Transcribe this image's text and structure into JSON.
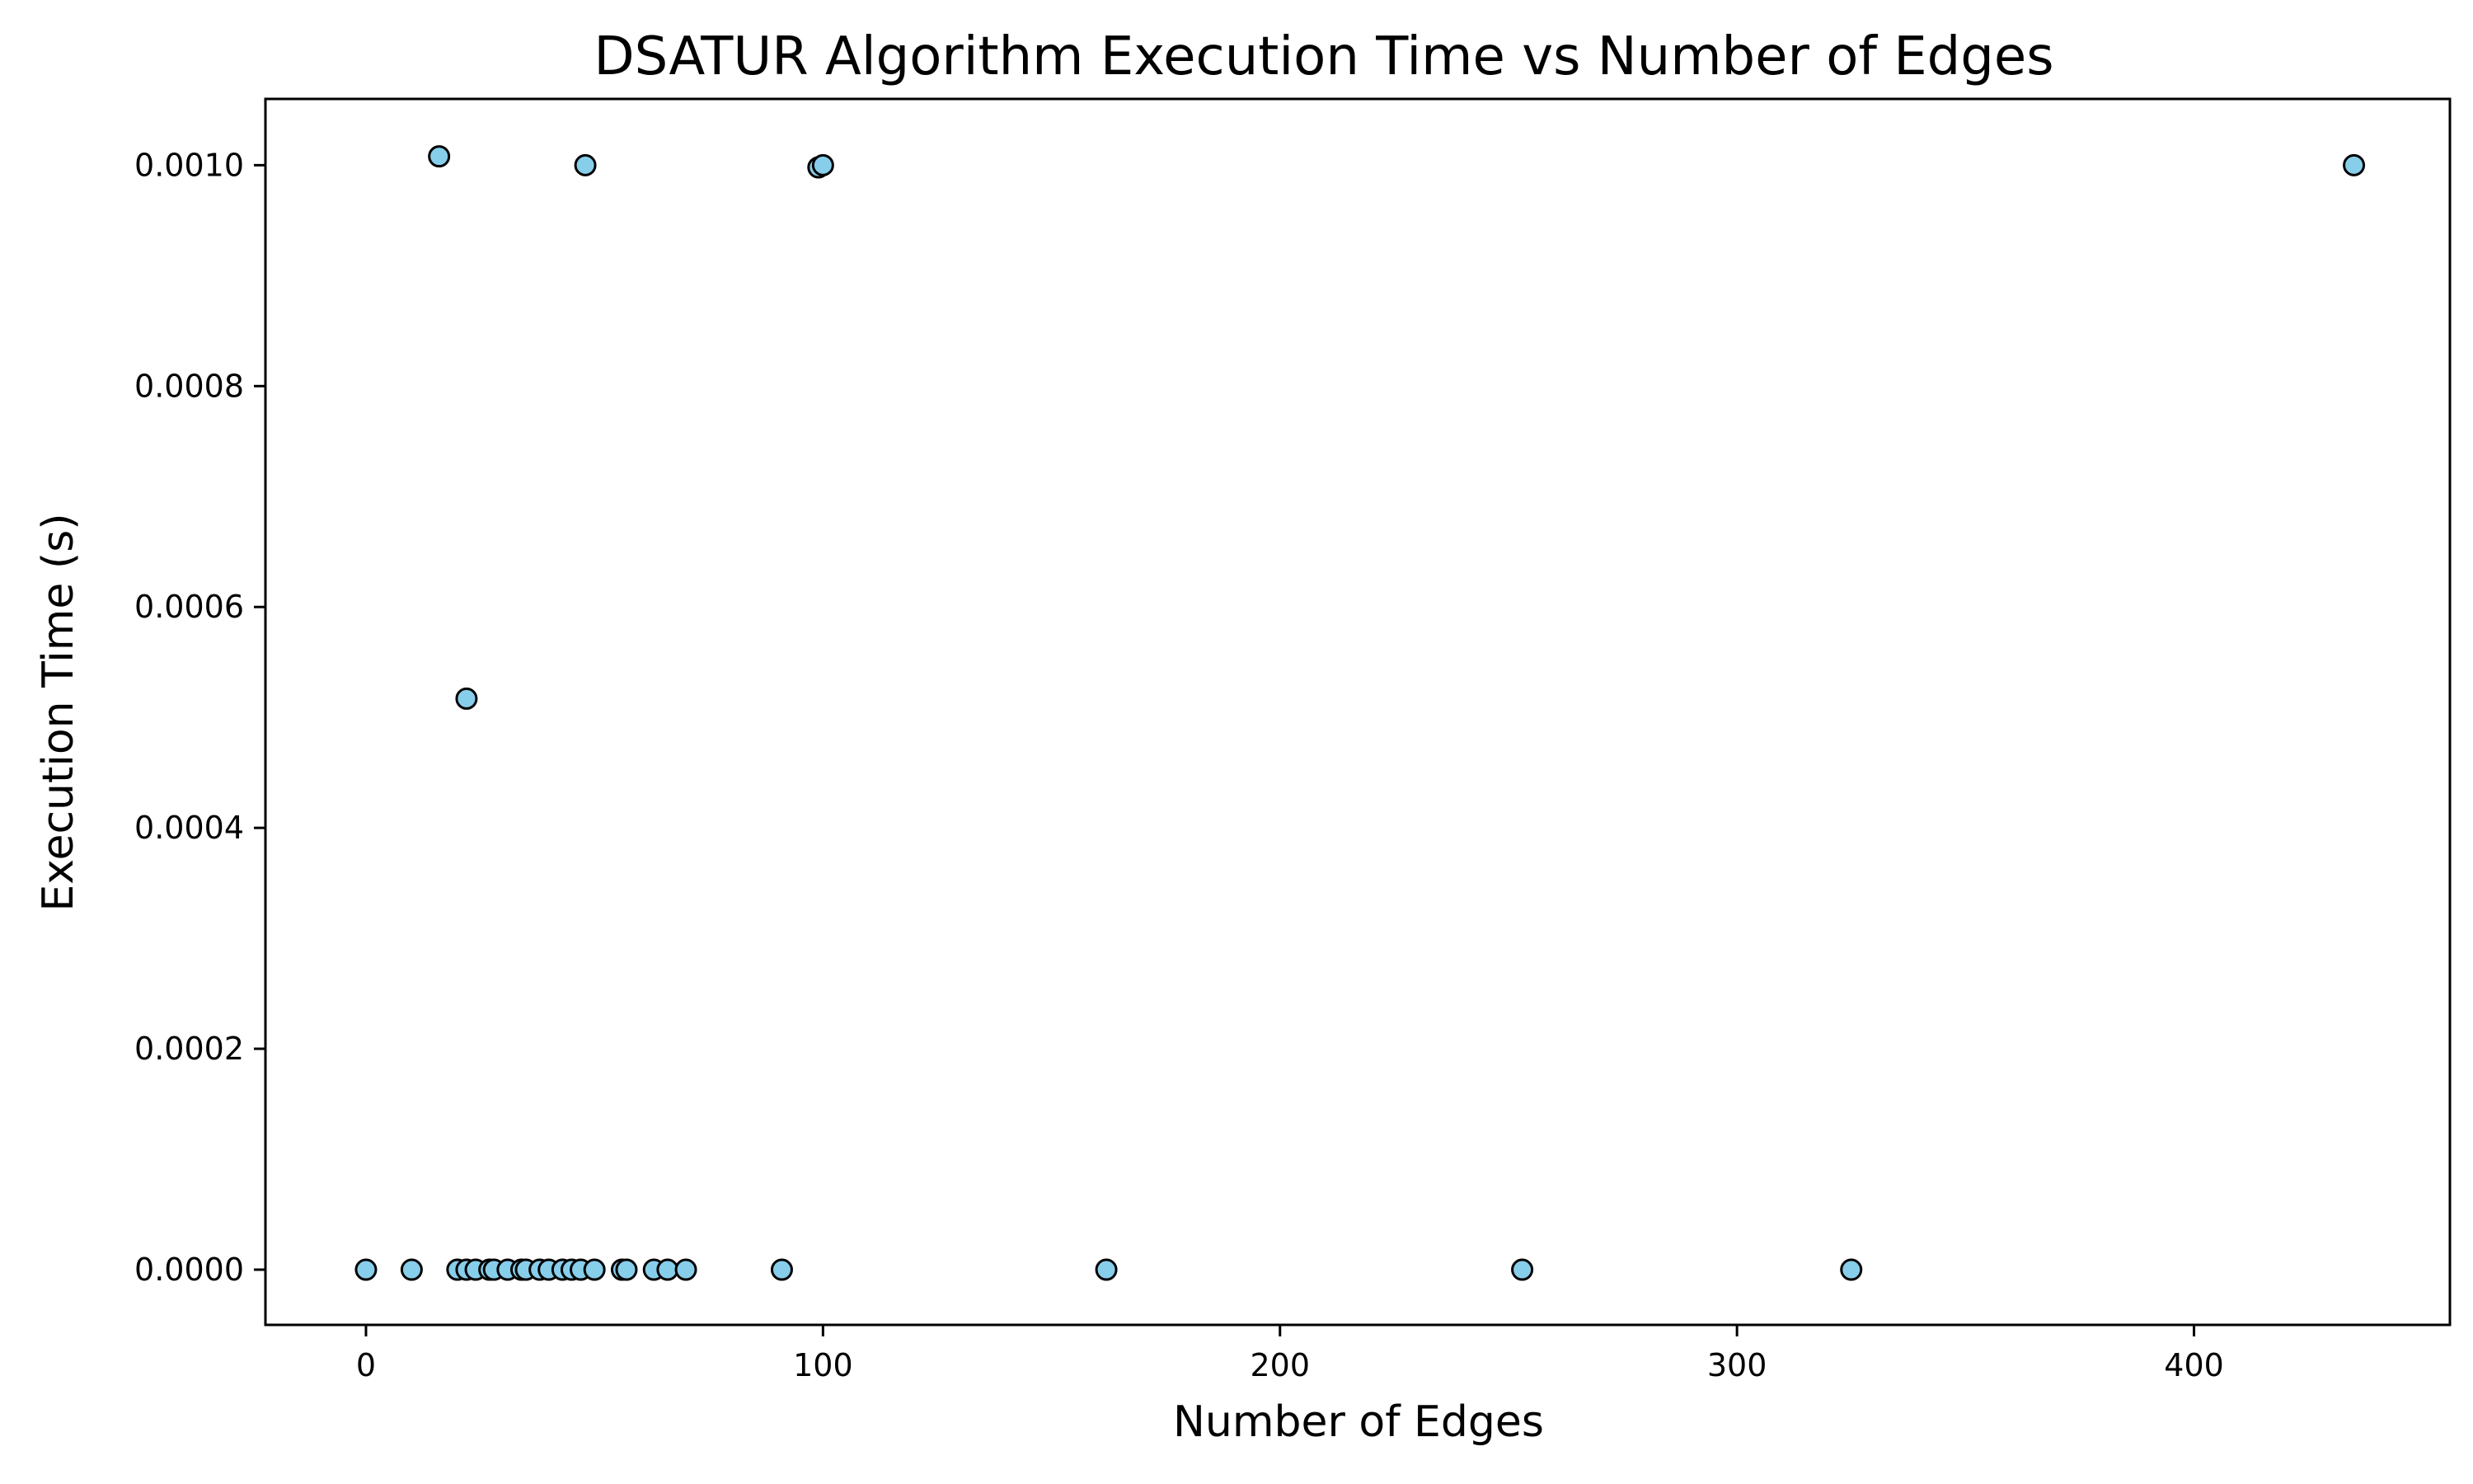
{
  "chart_data": {
    "type": "scatter",
    "title": "DSATUR Algorithm Execution Time vs Number of Edges",
    "xlabel": "Number of Edges",
    "ylabel": "Execution Time (s)",
    "xlim": [
      -22,
      456
    ],
    "ylim": [
      -5e-05,
      0.00106
    ],
    "xticks": [
      0,
      100,
      200,
      300,
      400
    ],
    "xtick_labels": [
      "0",
      "100",
      "200",
      "300",
      "400"
    ],
    "yticks": [
      0.0,
      0.0002,
      0.0004,
      0.0006,
      0.0008,
      0.001
    ],
    "ytick_labels": [
      "0.0000",
      "0.0002",
      "0.0004",
      "0.0006",
      "0.0008",
      "0.0010"
    ],
    "grid": false,
    "marker_color": "#87ceeb",
    "marker_edge_color": "#000000",
    "points": [
      {
        "x": 16,
        "y": 0.001008
      },
      {
        "x": 48,
        "y": 0.001
      },
      {
        "x": 99,
        "y": 0.000998
      },
      {
        "x": 100,
        "y": 0.001
      },
      {
        "x": 435,
        "y": 0.001
      },
      {
        "x": 22,
        "y": 0.000517
      },
      {
        "x": 0,
        "y": 0.0
      },
      {
        "x": 10,
        "y": 0.0
      },
      {
        "x": 20,
        "y": 0.0
      },
      {
        "x": 22,
        "y": 0.0
      },
      {
        "x": 24,
        "y": 0.0
      },
      {
        "x": 27,
        "y": 0.0
      },
      {
        "x": 28,
        "y": 0.0
      },
      {
        "x": 31,
        "y": 0.0
      },
      {
        "x": 34,
        "y": 0.0
      },
      {
        "x": 35,
        "y": 0.0
      },
      {
        "x": 38,
        "y": 0.0
      },
      {
        "x": 40,
        "y": 0.0
      },
      {
        "x": 43,
        "y": 0.0
      },
      {
        "x": 45,
        "y": 0.0
      },
      {
        "x": 47,
        "y": 0.0
      },
      {
        "x": 50,
        "y": 0.0
      },
      {
        "x": 56,
        "y": 0.0
      },
      {
        "x": 57,
        "y": 0.0
      },
      {
        "x": 63,
        "y": 0.0
      },
      {
        "x": 66,
        "y": 0.0
      },
      {
        "x": 70,
        "y": 0.0
      },
      {
        "x": 91,
        "y": 0.0
      },
      {
        "x": 162,
        "y": 0.0
      },
      {
        "x": 253,
        "y": 0.0
      },
      {
        "x": 325,
        "y": 0.0
      }
    ]
  }
}
